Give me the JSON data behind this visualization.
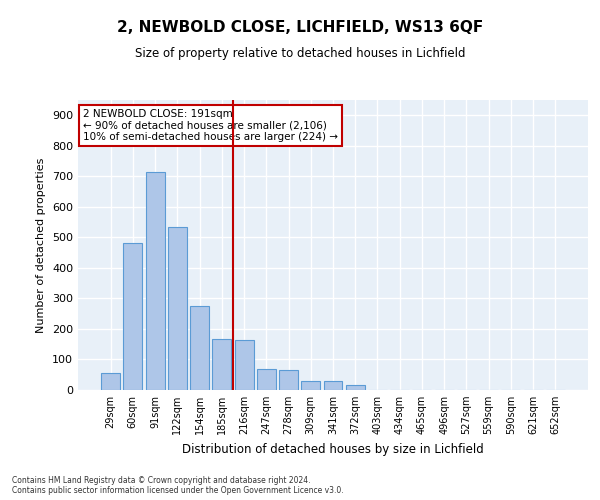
{
  "title": "2, NEWBOLD CLOSE, LICHFIELD, WS13 6QF",
  "subtitle": "Size of property relative to detached houses in Lichfield",
  "xlabel": "Distribution of detached houses by size in Lichfield",
  "ylabel": "Number of detached properties",
  "categories": [
    "29sqm",
    "60sqm",
    "91sqm",
    "122sqm",
    "154sqm",
    "185sqm",
    "216sqm",
    "247sqm",
    "278sqm",
    "309sqm",
    "341sqm",
    "372sqm",
    "403sqm",
    "434sqm",
    "465sqm",
    "496sqm",
    "527sqm",
    "559sqm",
    "590sqm",
    "621sqm",
    "652sqm"
  ],
  "values": [
    55,
    480,
    715,
    535,
    275,
    168,
    165,
    70,
    65,
    30,
    30,
    15,
    0,
    0,
    0,
    0,
    0,
    0,
    0,
    0,
    0
  ],
  "bar_color": "#aec6e8",
  "bar_edge_color": "#5b9bd5",
  "highlight_color": "#c00000",
  "annotation_text": "2 NEWBOLD CLOSE: 191sqm\n← 90% of detached houses are smaller (2,106)\n10% of semi-detached houses are larger (224) →",
  "annotation_box_color": "#ffffff",
  "annotation_box_edge": "#c00000",
  "vline_x_index": 5.5,
  "ylim": [
    0,
    950
  ],
  "yticks": [
    0,
    100,
    200,
    300,
    400,
    500,
    600,
    700,
    800,
    900
  ],
  "background_color": "#e8f0f8",
  "grid_color": "#ffffff",
  "footer_line1": "Contains HM Land Registry data © Crown copyright and database right 2024.",
  "footer_line2": "Contains public sector information licensed under the Open Government Licence v3.0."
}
